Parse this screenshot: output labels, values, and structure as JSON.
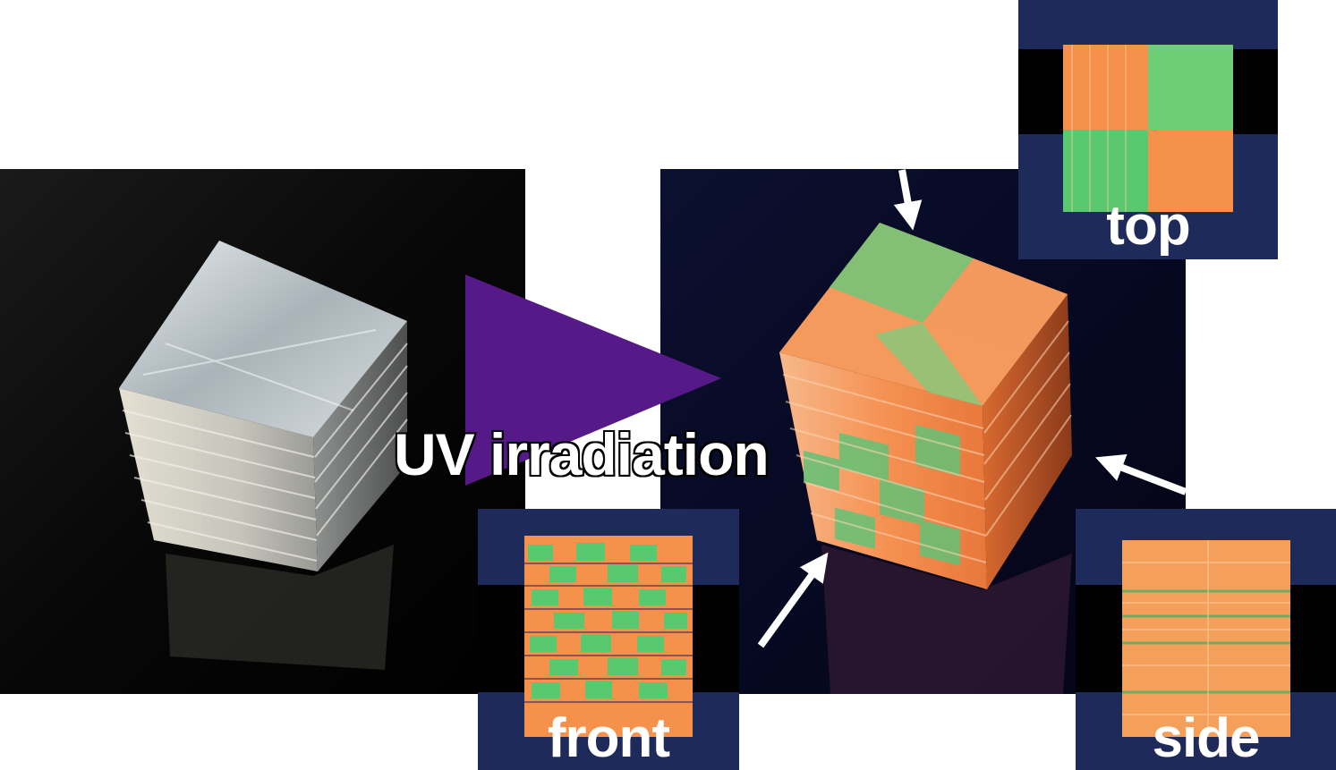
{
  "figure": {
    "process_label": "UV irradiation",
    "insets": {
      "top": "top",
      "front": "front",
      "side": "side"
    },
    "colors": {
      "arrow_fill": "#551a87",
      "inset_background": "#1e2a5a",
      "fluorescent_orange": "#f5914a",
      "fluorescent_green": "#5ac86e",
      "pointer_arrows": "#ffffff"
    }
  }
}
